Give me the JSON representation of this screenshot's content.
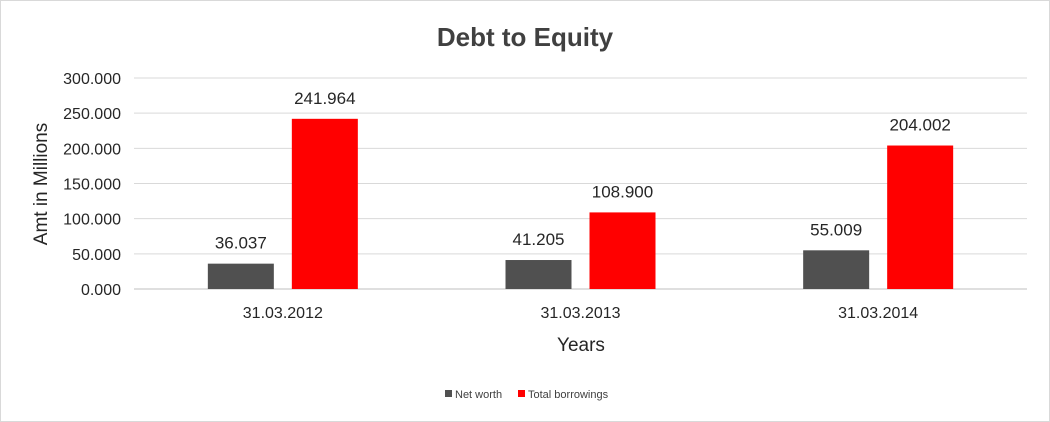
{
  "chart_data": {
    "type": "bar",
    "title": "Debt to Equity",
    "xlabel": "Years",
    "ylabel": "Amt in Millions",
    "categories": [
      "31.03.2012",
      "31.03.2013",
      "31.03.2014"
    ],
    "series": [
      {
        "name": "Net worth",
        "values": [
          36.037,
          41.205,
          55.009
        ],
        "color": "#505050"
      },
      {
        "name": "Total borrowings",
        "values": [
          241.964,
          108.9,
          204.002
        ],
        "color": "#ff0000"
      }
    ],
    "data_labels": [
      [
        "36.037",
        "41.205",
        "55.009"
      ],
      [
        "241.964",
        "108.900",
        "204.002"
      ]
    ],
    "y_ticks": [
      "0.000",
      "50.000",
      "100.000",
      "150.000",
      "200.000",
      "250.000",
      "300.000"
    ],
    "ylim": [
      0,
      300
    ],
    "grid": true,
    "legend_position": "bottom"
  }
}
